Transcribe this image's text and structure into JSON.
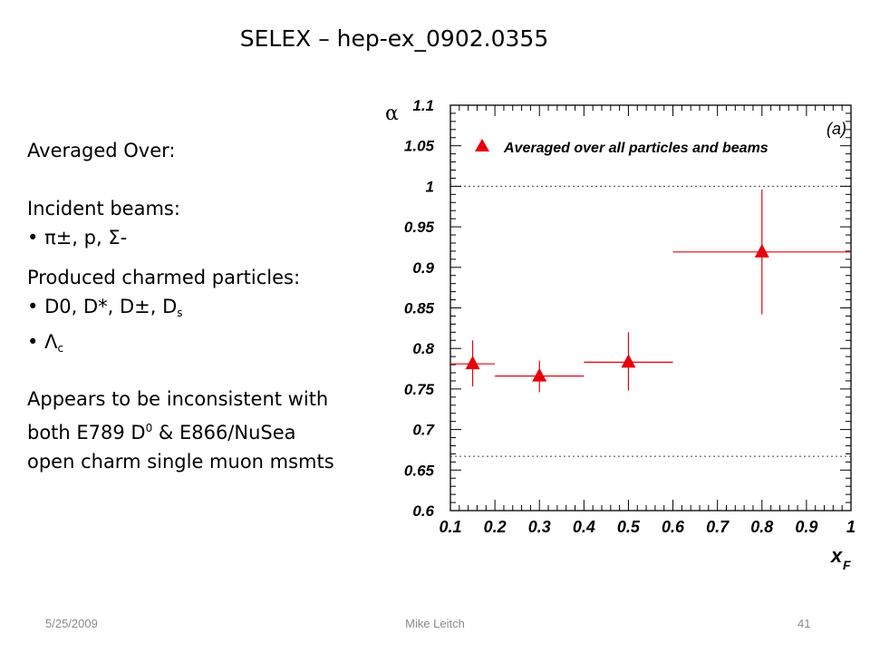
{
  "slide": {
    "title": "SELEX – hep-ex_0902.0355",
    "averaged_over": "Averaged Over:",
    "incident_beams_heading": "Incident beams:",
    "beams_item": "π±, p, Σ-",
    "produced_heading": "Produced charmed particles:",
    "particles_item1_main": "D0, D*, D±, D",
    "particles_item1_sub": "s",
    "particles_item2_main": "Λ",
    "particles_item2_sub": "c",
    "conclusion_line1": "Appears to be inconsistent with",
    "conclusion_line2_a": "both E789 D",
    "conclusion_line2_sup": "0",
    "conclusion_line2_b": " & E866/NuSea",
    "conclusion_line3": "open charm single muon msmts"
  },
  "footer": {
    "date": "5/25/2009",
    "author": "Mike Leitch",
    "page_number": "41"
  },
  "chart_data": {
    "type": "scatter",
    "panel_label": "(a)",
    "legend": "Averaged over all particles and beams",
    "xlabel": "x",
    "xlabel_sub": "F",
    "ylabel": "α",
    "xlim": [
      0.1,
      1.0
    ],
    "ylim": [
      0.6,
      1.1
    ],
    "xticks": [
      "0.1",
      "0.2",
      "0.3",
      "0.4",
      "0.5",
      "0.6",
      "0.7",
      "0.8",
      "0.9",
      "1"
    ],
    "yticks": [
      "0.6",
      "0.65",
      "0.7",
      "0.75",
      "0.8",
      "0.85",
      "0.9",
      "0.95",
      "1",
      "1.05",
      "1.1"
    ],
    "reference_lines": [
      1.0,
      0.667
    ],
    "marker_color": "#e8000b",
    "points": [
      {
        "x": 0.15,
        "y": 0.781,
        "x_low": 0.1,
        "x_high": 0.2,
        "y_low": 0.753,
        "y_high": 0.81
      },
      {
        "x": 0.3,
        "y": 0.766,
        "x_low": 0.2,
        "x_high": 0.4,
        "y_low": 0.746,
        "y_high": 0.785
      },
      {
        "x": 0.5,
        "y": 0.783,
        "x_low": 0.4,
        "x_high": 0.6,
        "y_low": 0.748,
        "y_high": 0.82
      },
      {
        "x": 0.8,
        "y": 0.919,
        "x_low": 0.6,
        "x_high": 1.0,
        "y_low": 0.842,
        "y_high": 0.996
      }
    ]
  }
}
